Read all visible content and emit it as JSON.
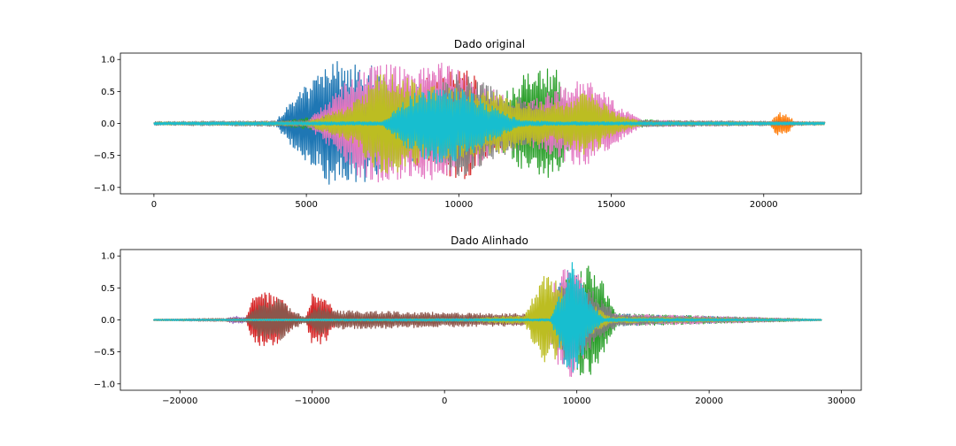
{
  "chart_data": [
    {
      "type": "line",
      "title": "Dado original",
      "xlabel": "",
      "ylabel": "",
      "xlim": [
        -1100,
        23200
      ],
      "ylim": [
        -1.1,
        1.1
      ],
      "x_ticks": [
        0,
        5000,
        10000,
        15000,
        20000
      ],
      "x_tick_labels": [
        "0",
        "5000",
        "10000",
        "15000",
        "20000"
      ],
      "y_ticks": [
        1.0,
        0.5,
        0.0,
        -0.5,
        -1.0
      ],
      "y_tick_labels": [
        "1.0",
        "0.5",
        "0.0",
        "−0.5",
        "−1.0"
      ],
      "grid": false,
      "series_colors": [
        "#1f77b4",
        "#ff7f0e",
        "#2ca02c",
        "#d62728",
        "#9467bd",
        "#8c564b",
        "#e377c2",
        "#7f7f7f",
        "#bcbd22",
        "#17becf"
      ],
      "series": [
        {
          "x": [
            0,
            4000,
            4300,
            5000,
            5800,
            6300,
            7200,
            8000,
            9000,
            11000,
            13000,
            14500,
            16000,
            18000,
            22000
          ],
          "amplitude": [
            0.02,
            0.03,
            0.25,
            0.6,
            0.98,
            0.95,
            0.9,
            0.7,
            0.5,
            0.2,
            0.08,
            0.05,
            0.03,
            0.03,
            0.02
          ]
        },
        {
          "x": [
            0,
            4000,
            9000,
            10000,
            11000,
            12000,
            16000,
            20200,
            20400,
            20800,
            21000,
            22000
          ],
          "amplitude": [
            0.01,
            0.02,
            0.05,
            0.2,
            0.3,
            0.1,
            0.02,
            0.02,
            0.18,
            0.16,
            0.03,
            0.02
          ]
        },
        {
          "x": [
            0,
            4000,
            6000,
            8000,
            11000,
            12000,
            12400,
            13200,
            13800,
            15000,
            18000,
            22000
          ],
          "amplitude": [
            0.02,
            0.03,
            0.15,
            0.2,
            0.3,
            0.7,
            0.9,
            0.85,
            0.3,
            0.08,
            0.03,
            0.02
          ]
        },
        {
          "x": [
            0,
            5000,
            7000,
            8000,
            9500,
            10200,
            11000,
            12000,
            14000,
            22000
          ],
          "amplitude": [
            0.02,
            0.03,
            0.3,
            0.6,
            0.85,
            0.95,
            0.5,
            0.2,
            0.05,
            0.02
          ]
        },
        {
          "x": [
            0,
            5000,
            8000,
            10000,
            13000,
            22000
          ],
          "amplitude": [
            0.01,
            0.02,
            0.06,
            0.08,
            0.03,
            0.01
          ]
        },
        {
          "x": [
            0,
            5000,
            8000,
            10000,
            12000,
            14000,
            22000
          ],
          "amplitude": [
            0.02,
            0.03,
            0.15,
            0.2,
            0.15,
            0.05,
            0.02
          ]
        },
        {
          "x": [
            0,
            5000,
            5800,
            6500,
            7500,
            8500,
            9500,
            10500,
            12000,
            13500,
            14000,
            14500,
            15200,
            16000,
            22000
          ],
          "amplitude": [
            0.02,
            0.04,
            0.4,
            0.8,
            0.95,
            0.9,
            0.95,
            0.7,
            0.3,
            0.6,
            0.7,
            0.6,
            0.3,
            0.05,
            0.02
          ]
        },
        {
          "x": [
            0,
            2500,
            5000,
            9000,
            10000,
            11000,
            12500,
            14000,
            17000,
            19000,
            22000
          ],
          "amplitude": [
            0.03,
            0.04,
            0.05,
            0.5,
            0.85,
            0.6,
            0.3,
            0.05,
            0.05,
            0.04,
            0.03
          ]
        },
        {
          "x": [
            0,
            5000,
            6500,
            7500,
            9000,
            11000,
            12000,
            13000,
            14200,
            14600,
            15000,
            16000,
            22000
          ],
          "amplitude": [
            0.02,
            0.03,
            0.3,
            0.85,
            0.6,
            0.5,
            0.4,
            0.3,
            0.5,
            0.4,
            0.2,
            0.03,
            0.02
          ]
        },
        {
          "x": [
            0,
            7500,
            8300,
            9000,
            9500,
            10200,
            11000,
            12000,
            13000,
            22000
          ],
          "amplitude": [
            0.02,
            0.03,
            0.4,
            0.6,
            0.65,
            0.55,
            0.3,
            0.05,
            0.03,
            0.02
          ]
        }
      ]
    },
    {
      "type": "line",
      "title": "Dado Alinhado",
      "xlabel": "",
      "ylabel": "",
      "xlim": [
        -24500,
        31500
      ],
      "ylim": [
        -1.1,
        1.1
      ],
      "x_ticks": [
        -20000,
        -10000,
        0,
        10000,
        20000,
        30000
      ],
      "x_tick_labels": [
        "−20000",
        "−10000",
        "0",
        "10000",
        "20000",
        "30000"
      ],
      "y_ticks": [
        1.0,
        0.5,
        0.0,
        -0.5,
        -1.0
      ],
      "y_tick_labels": [
        "1.0",
        "0.5",
        "0.0",
        "−0.5",
        "−1.0"
      ],
      "grid": false,
      "series_colors": [
        "#1f77b4",
        "#ff7f0e",
        "#2ca02c",
        "#d62728",
        "#9467bd",
        "#8c564b",
        "#e377c2",
        "#7f7f7f",
        "#bcbd22",
        "#17becf"
      ],
      "series": [
        {
          "x": [
            -22000,
            7000,
            8500,
            9500,
            10500,
            12000,
            28500
          ],
          "amplitude": [
            0.01,
            0.02,
            0.5,
            0.9,
            0.6,
            0.1,
            0.01
          ]
        },
        {
          "x": [
            -22000,
            -5000,
            -4000,
            -3000,
            7000,
            9000,
            11000,
            13000,
            28500
          ],
          "amplitude": [
            0.01,
            0.02,
            0.06,
            0.02,
            0.05,
            0.5,
            0.4,
            0.05,
            0.01
          ]
        },
        {
          "x": [
            -22000,
            7000,
            9000,
            10500,
            11500,
            13000,
            28500
          ],
          "amplitude": [
            0.01,
            0.02,
            0.6,
            0.95,
            0.8,
            0.1,
            0.01
          ]
        },
        {
          "x": [
            -22000,
            -15000,
            -14500,
            -13500,
            -12500,
            -12000,
            -11000,
            -10500,
            -10000,
            -9000,
            -8500,
            -8000,
            28500
          ],
          "amplitude": [
            0.01,
            0.02,
            0.4,
            0.45,
            0.38,
            0.25,
            0.02,
            0.03,
            0.45,
            0.35,
            0.2,
            0.01,
            0.01
          ]
        },
        {
          "x": [
            -22000,
            -16500,
            -16000,
            -15000,
            -14000,
            28500
          ],
          "amplitude": [
            0.01,
            0.02,
            0.06,
            0.05,
            0.02,
            0.01
          ]
        },
        {
          "x": [
            -22000,
            -15000,
            -14000,
            -12500,
            -11500,
            -10500,
            -9500,
            -8500,
            28500
          ],
          "amplitude": [
            0.01,
            0.03,
            0.3,
            0.35,
            0.15,
            0.05,
            0.25,
            0.15,
            0.01
          ]
        },
        {
          "x": [
            -22000,
            7000,
            8500,
            9500,
            10500,
            12000,
            28500
          ],
          "amplitude": [
            0.01,
            0.02,
            0.7,
            0.95,
            0.6,
            0.1,
            0.01
          ]
        },
        {
          "x": [
            -22000,
            -5000,
            0,
            5000,
            7000,
            9000,
            11000,
            13000,
            17000,
            23000,
            28500
          ],
          "amplitude": [
            0.01,
            0.02,
            0.03,
            0.03,
            0.04,
            0.6,
            0.5,
            0.1,
            0.05,
            0.03,
            0.01
          ]
        },
        {
          "x": [
            -22000,
            2000,
            4000,
            6000,
            7000,
            7500,
            8500,
            9500,
            10500,
            11500,
            12500,
            28500
          ],
          "amplitude": [
            0.01,
            0.02,
            0.05,
            0.06,
            0.5,
            0.7,
            0.6,
            0.4,
            0.3,
            0.2,
            0.05,
            0.01
          ]
        },
        {
          "x": [
            -22000,
            8000,
            8800,
            9500,
            10200,
            11000,
            12000,
            28500
          ],
          "amplitude": [
            0.01,
            0.02,
            0.5,
            0.95,
            0.7,
            0.3,
            0.03,
            0.01
          ]
        }
      ]
    }
  ]
}
